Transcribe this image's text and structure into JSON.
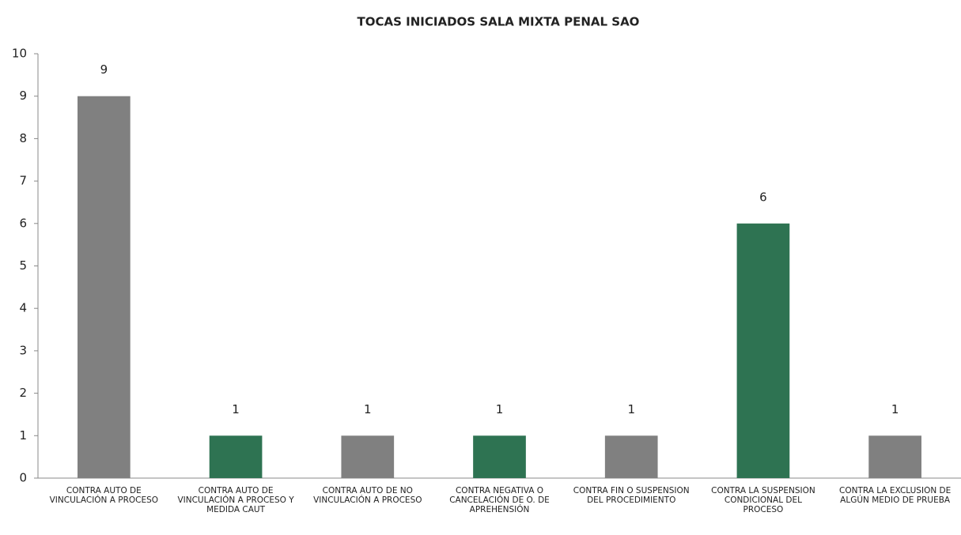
{
  "chart_data": {
    "type": "bar",
    "title": "TOCAS INICIADOS SALA MIXTA PENAL SAO",
    "categories": [
      "CONTRA AUTO DE VINCULACIÓN A PROCESO",
      "CONTRA AUTO DE VINCULACIÓN A PROCESO Y MEDIDA CAUT",
      "CONTRA AUTO DE NO VINCULACIÓN A PROCESO",
      "CONTRA NEGATIVA O CANCELACIÓN DE O. DE APREHENSIÓN",
      "CONTRA FIN O SUSPENSIÓN DEL PROCEDIMIENTO",
      "CONTRA LA SUSPENSIÓN CONDICIONAL DEL PROCESO",
      "CONTRA LA EXCLUSIÓN DE ALGÚN MEDIO DE PRUEBA"
    ],
    "values": [
      9,
      1,
      1,
      1,
      1,
      6,
      1
    ],
    "colors": [
      "#808080",
      "#2e7352",
      "#808080",
      "#2e7352",
      "#808080",
      "#2e7352",
      "#808080"
    ],
    "ylim": [
      0,
      10
    ],
    "yticks": [
      0,
      1,
      2,
      3,
      4,
      5,
      6,
      7,
      8,
      9,
      10
    ],
    "grid": false
  }
}
